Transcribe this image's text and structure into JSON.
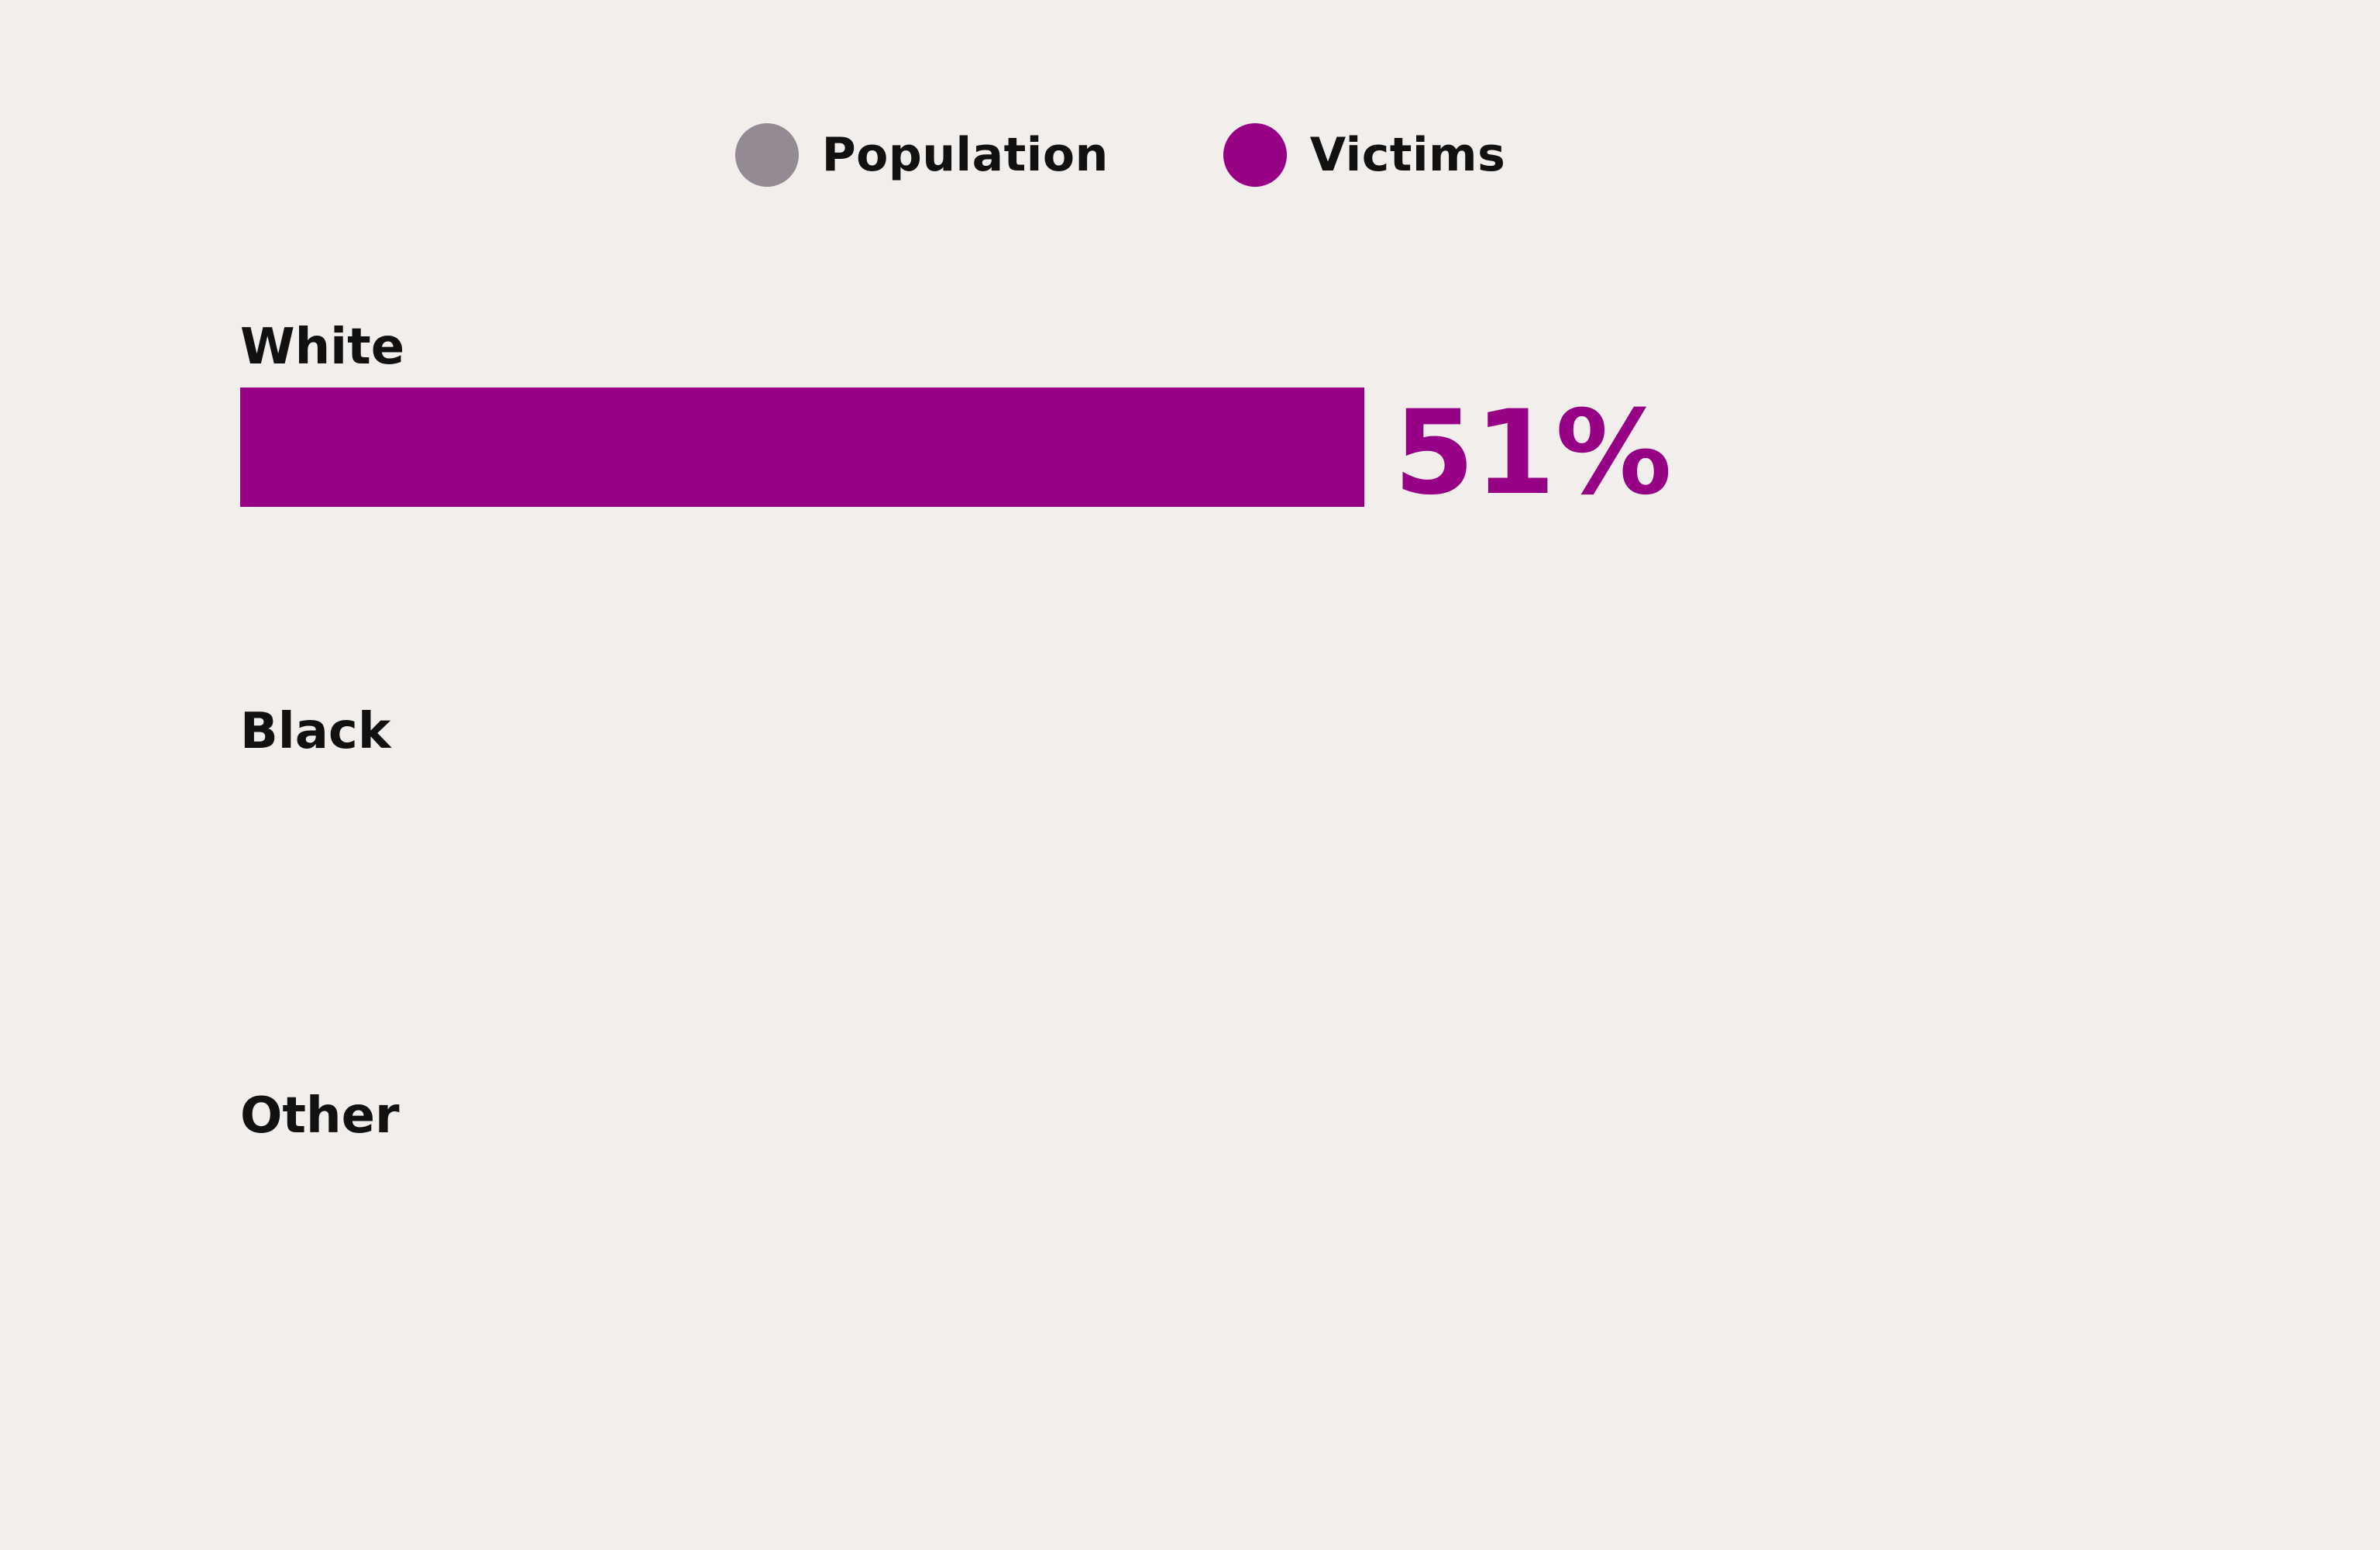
{
  "colors": {
    "population": "#948a93",
    "victims": "#960084",
    "background": "#f2eeeb",
    "text": "#111111"
  },
  "legend": {
    "items": [
      {
        "label": "Population",
        "color": "#948a93"
      },
      {
        "label": "Victims",
        "color": "#960084"
      }
    ]
  },
  "chart_data": {
    "type": "bar",
    "orientation": "horizontal",
    "categories": [
      "White",
      "Black",
      "Other"
    ],
    "series": [
      {
        "name": "Victims",
        "values": [
          51,
          null,
          null
        ],
        "labels": [
          "51%",
          "",
          ""
        ]
      }
    ],
    "xlim": [
      0,
      100
    ],
    "grid": false,
    "legend_position": "top-center"
  }
}
